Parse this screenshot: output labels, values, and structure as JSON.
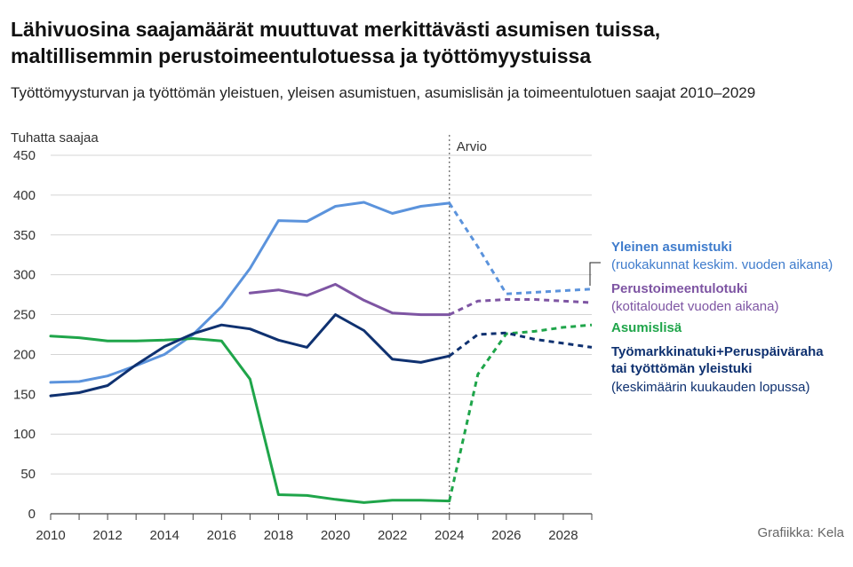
{
  "header": {
    "title_line1": "Lähivuosina saajamäärät muuttuvat merkittävästi asumisen tuissa,",
    "title_line2": "maltillisemmin perustoimeentulotuessa ja työttömyystuissa",
    "subtitle": "Työttömyysturvan ja työttömän yleistuen, yleisen asumistuen, asumislisän ja toimeentulotuen saajat 2010–2029"
  },
  "credit": "Grafiikka: Kela",
  "chart_data": {
    "type": "line",
    "ylabel": "Tuhatta saajaa",
    "xlabel": "",
    "ylim": [
      0,
      450
    ],
    "xlim": [
      2010,
      2029
    ],
    "yticks": [
      0,
      50,
      100,
      150,
      200,
      250,
      300,
      350,
      400,
      450
    ],
    "xticks": [
      2010,
      2012,
      2014,
      2016,
      2018,
      2020,
      2022,
      2024,
      2026,
      2028
    ],
    "forecast_start": 2024,
    "forecast_label": "Arvio",
    "grid": "horizontal",
    "legend_position": "right",
    "series": [
      {
        "name": "Yleinen asumistuki",
        "note": "(ruokakunnat keskim. vuoden aikana)",
        "color": "#5b93dc",
        "x": [
          2010,
          2011,
          2012,
          2013,
          2014,
          2015,
          2016,
          2017,
          2018,
          2019,
          2020,
          2021,
          2022,
          2023,
          2024,
          2025,
          2026,
          2027,
          2028,
          2029
        ],
        "values": [
          165,
          166,
          173,
          186,
          200,
          225,
          260,
          308,
          368,
          367,
          386,
          391,
          377,
          386,
          390,
          335,
          276,
          278,
          280,
          282
        ]
      },
      {
        "name": "Perustoimeentulotuki",
        "note": "(kotitaloudet vuoden aikana)",
        "color": "#7e55a3",
        "x": [
          2017,
          2018,
          2019,
          2020,
          2021,
          2022,
          2023,
          2024,
          2025,
          2026,
          2027,
          2028,
          2029
        ],
        "values": [
          277,
          281,
          274,
          288,
          268,
          252,
          250,
          250,
          267,
          269,
          269,
          267,
          265
        ]
      },
      {
        "name": "Asumislisä",
        "note": "",
        "color": "#1fa54a",
        "x": [
          2010,
          2011,
          2012,
          2013,
          2014,
          2015,
          2016,
          2017,
          2018,
          2019,
          2020,
          2021,
          2022,
          2023,
          2024,
          2025,
          2026,
          2027,
          2028,
          2029
        ],
        "values": [
          223,
          221,
          217,
          217,
          218,
          220,
          217,
          169,
          24,
          23,
          18,
          14,
          17,
          17,
          16,
          175,
          226,
          229,
          234,
          237
        ]
      },
      {
        "name": "Työmarkkinatuki+Peruspäiväraha tai työttömän yleistuki",
        "note": "(keskimäärin kuukauden lopussa)",
        "color": "#0f3170",
        "x": [
          2010,
          2011,
          2012,
          2013,
          2014,
          2015,
          2016,
          2017,
          2018,
          2019,
          2020,
          2021,
          2022,
          2023,
          2024,
          2025,
          2026,
          2027,
          2028,
          2029
        ],
        "values": [
          148,
          152,
          161,
          187,
          210,
          226,
          237,
          232,
          218,
          209,
          250,
          230,
          194,
          190,
          198,
          225,
          227,
          219,
          214,
          209
        ]
      }
    ]
  }
}
